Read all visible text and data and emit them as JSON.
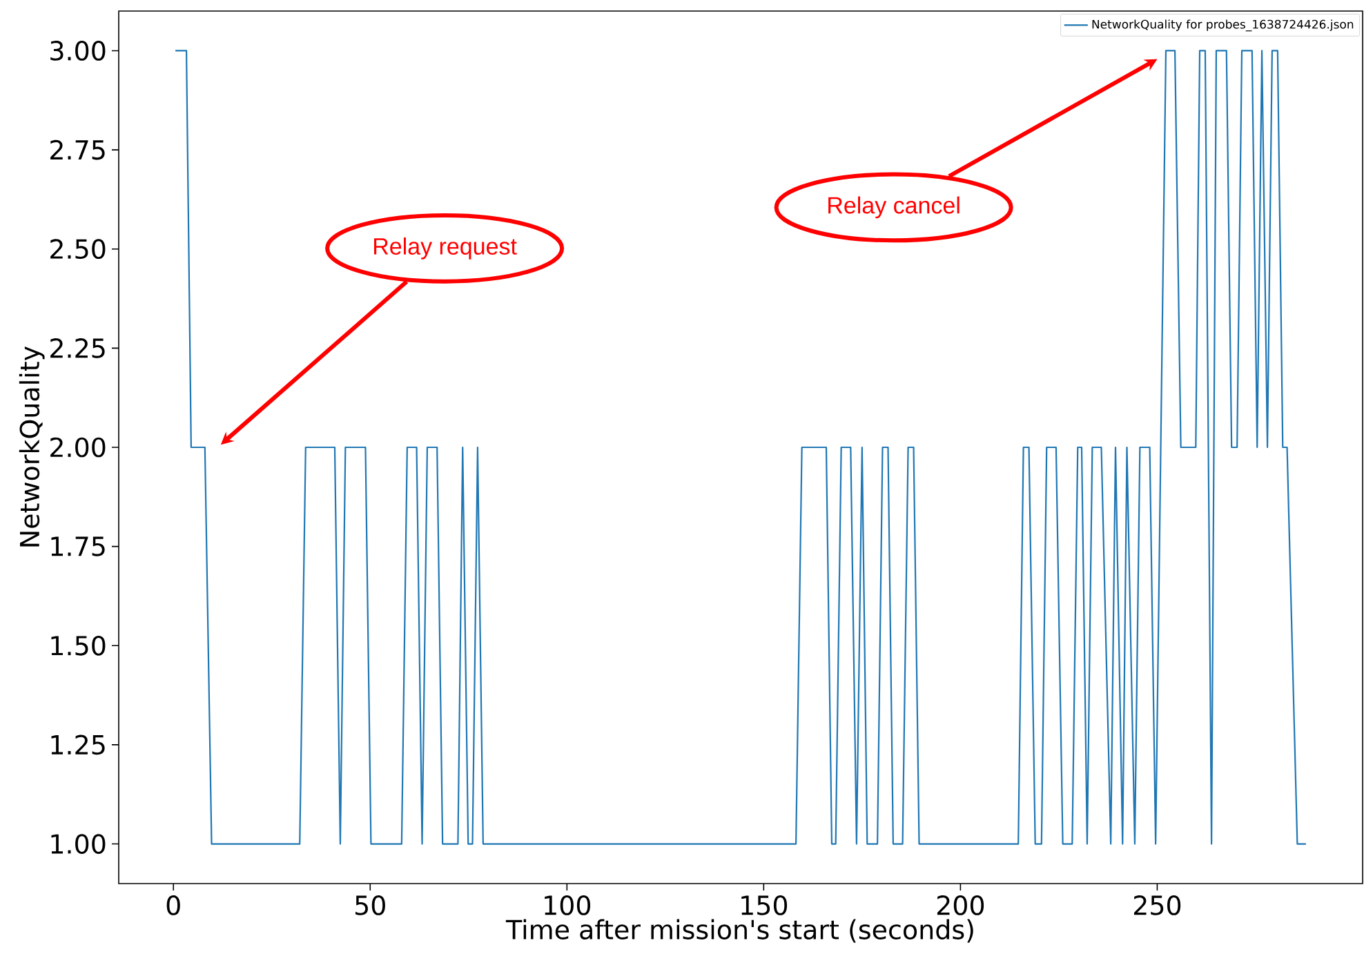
{
  "chart_data": {
    "type": "line",
    "xlabel": "Time after mission's start (seconds)",
    "ylabel": "NetworkQuality",
    "x": [
      0.5,
      3.3,
      4.5,
      8.0,
      9.7,
      32.1,
      33.6,
      41.0,
      42.4,
      43.7,
      48.8,
      50.2,
      58.0,
      59.4,
      61.8,
      63.2,
      64.5,
      67.0,
      68.4,
      72.3,
      73.5,
      74.9,
      76.0,
      77.3,
      78.7,
      158.2,
      159.7,
      165.9,
      167.3,
      168.3,
      169.7,
      172.1,
      173.6,
      175.0,
      176.3,
      178.9,
      180.2,
      181.6,
      182.9,
      185.3,
      186.7,
      188.1,
      189.5,
      214.7,
      216.0,
      217.4,
      219.0,
      220.6,
      221.9,
      224.3,
      226.0,
      228.4,
      229.8,
      230.8,
      232.2,
      233.5,
      235.8,
      238.2,
      239.4,
      241.2,
      242.3,
      244.3,
      245.6,
      248.1,
      249.6,
      252.2,
      254.5,
      256.0,
      259.8,
      260.8,
      262.2,
      263.8,
      265.0,
      267.6,
      268.9,
      270.3,
      271.5,
      274.1,
      275.4,
      276.6,
      278.0,
      279.2,
      280.6,
      281.9,
      283.0,
      285.6,
      287.8
    ],
    "series": [
      {
        "name": "NetworkQuality for probes_1638724426.json",
        "color": "#1f77b4",
        "values": [
          3,
          3,
          2,
          2,
          1,
          1,
          2,
          2,
          1,
          2,
          2,
          1,
          1,
          2,
          2,
          1,
          2,
          2,
          1,
          1,
          2,
          1,
          1,
          2,
          1,
          1,
          2,
          2,
          1,
          1,
          2,
          2,
          1,
          2,
          1,
          1,
          2,
          2,
          1,
          1,
          2,
          2,
          1,
          1,
          2,
          2,
          1,
          1,
          2,
          2,
          1,
          1,
          2,
          2,
          1,
          2,
          2,
          1,
          2,
          1,
          2,
          1,
          2,
          2,
          1,
          3,
          3,
          2,
          2,
          3,
          3,
          1,
          3,
          3,
          2,
          2,
          3,
          3,
          2,
          3,
          2,
          3,
          3,
          2,
          2,
          1,
          1
        ]
      }
    ],
    "xlim": [
      -13.9,
      302.2
    ],
    "ylim": [
      0.9,
      3.1
    ],
    "xticks": [
      0,
      50,
      100,
      150,
      200,
      250
    ],
    "yticks": [
      {
        "value": 1,
        "label": "1.00"
      },
      {
        "value": 1.25,
        "label": "1.25"
      },
      {
        "value": 1.5,
        "label": "1.50"
      },
      {
        "value": 1.75,
        "label": "1.75"
      },
      {
        "value": 2,
        "label": "2.00"
      },
      {
        "value": 2.25,
        "label": "2.25"
      },
      {
        "value": 2.5,
        "label": "2.50"
      },
      {
        "value": 2.75,
        "label": "2.75"
      },
      {
        "value": 3,
        "label": "3.00"
      }
    ],
    "legend": "top right",
    "annotations": [
      "Relay request",
      "Relay cancel"
    ]
  }
}
